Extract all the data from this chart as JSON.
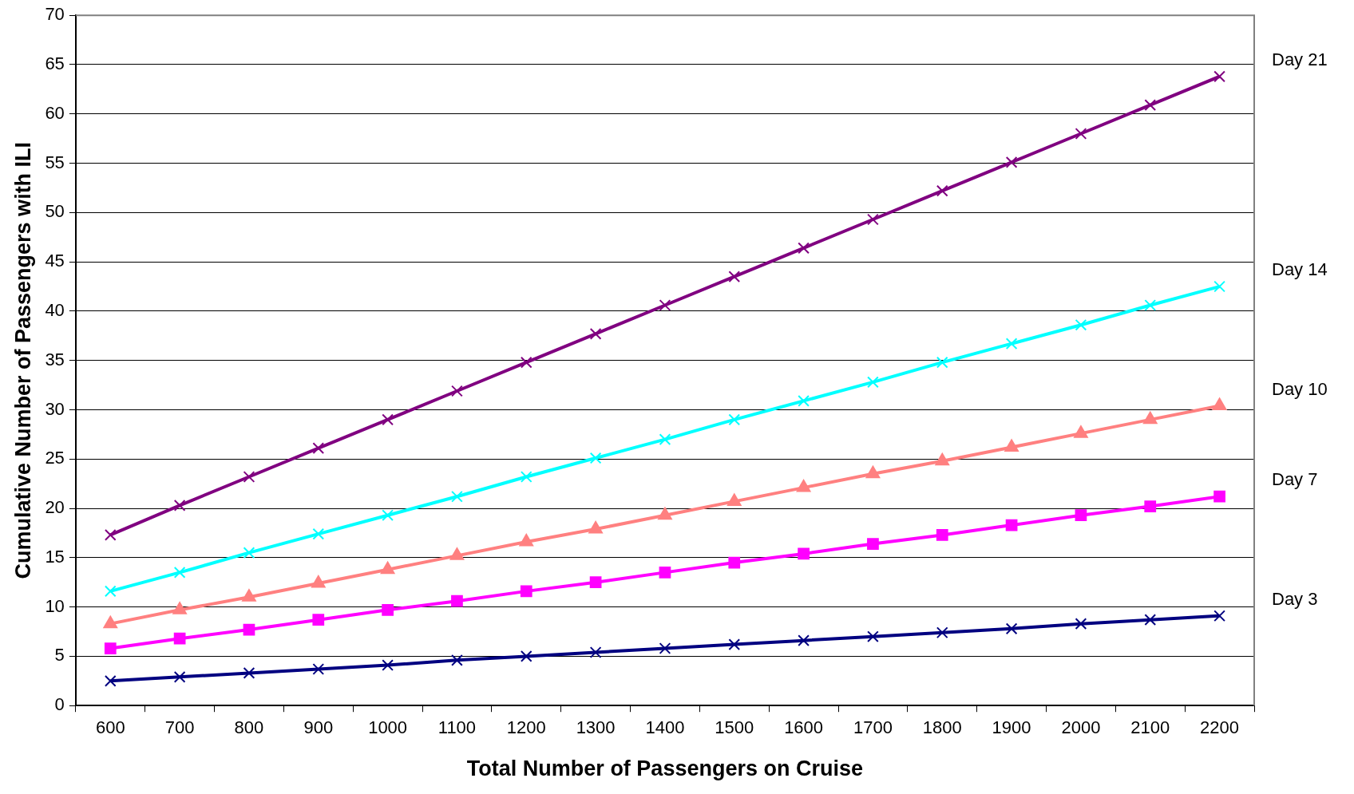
{
  "chart_data": {
    "type": "line",
    "xlabel": "Total Number of Passengers on Cruise",
    "ylabel": "Cumulative Number of Passengers with ILI",
    "categories": [
      "600",
      "700",
      "800",
      "900",
      "1000",
      "1100",
      "1200",
      "1300",
      "1400",
      "1500",
      "1600",
      "1700",
      "1800",
      "1900",
      "2000",
      "2100",
      "2200"
    ],
    "ylim": [
      0,
      70
    ],
    "yticks": [
      0,
      5,
      10,
      15,
      20,
      25,
      30,
      35,
      40,
      45,
      50,
      55,
      60,
      65,
      70
    ],
    "grid": "y",
    "legend": false,
    "series": [
      {
        "name": "Day 21",
        "color": "#800080",
        "marker": "cross",
        "values": [
          17.3,
          20.3,
          23.2,
          26.1,
          29.0,
          31.9,
          34.8,
          37.7,
          40.6,
          43.5,
          46.4,
          49.3,
          52.2,
          55.1,
          58.0,
          60.9,
          63.8
        ]
      },
      {
        "name": "Day 14",
        "color": "#00ffff",
        "marker": "cross",
        "values": [
          11.6,
          13.5,
          15.5,
          17.4,
          19.3,
          21.2,
          23.2,
          25.1,
          27.0,
          29.0,
          30.9,
          32.8,
          34.8,
          36.7,
          38.6,
          40.6,
          42.5
        ]
      },
      {
        "name": "Day 10",
        "color": "#ff8080",
        "marker": "triangle",
        "values": [
          8.3,
          9.7,
          11.0,
          12.4,
          13.8,
          15.2,
          16.6,
          17.9,
          19.3,
          20.7,
          22.1,
          23.5,
          24.8,
          26.2,
          27.6,
          29.0,
          30.4
        ]
      },
      {
        "name": "Day 7",
        "color": "#ff00ff",
        "marker": "square",
        "values": [
          5.8,
          6.8,
          7.7,
          8.7,
          9.7,
          10.6,
          11.6,
          12.5,
          13.5,
          14.5,
          15.4,
          16.4,
          17.3,
          18.3,
          19.3,
          20.2,
          21.2
        ]
      },
      {
        "name": "Day 3",
        "color": "#000080",
        "marker": "cross",
        "values": [
          2.5,
          2.9,
          3.3,
          3.7,
          4.1,
          4.6,
          5.0,
          5.4,
          5.8,
          6.2,
          6.6,
          7.0,
          7.4,
          7.8,
          8.3,
          8.7,
          9.1
        ]
      }
    ]
  }
}
